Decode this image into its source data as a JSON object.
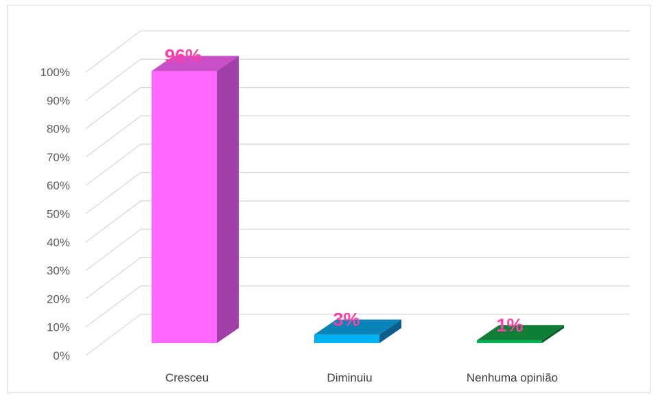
{
  "chart_data": {
    "type": "bar",
    "style": "3d-column",
    "categories": [
      "Cresceu",
      "Diminuiu",
      "Nenhuma opinião"
    ],
    "values": [
      96,
      3,
      1
    ],
    "data_labels": [
      "96%",
      "3%",
      "1%"
    ],
    "colors": {
      "Cresceu": {
        "front": "#ff66ff",
        "side": "#a040a8",
        "top": "#c94fc9"
      },
      "Diminuiu": {
        "front": "#00b0f0",
        "side": "#0d5e8a",
        "top": "#0a84b8"
      },
      "Nenhuma opinião": {
        "front": "#00b050",
        "side": "#0b5e2a",
        "top": "#0f7f38"
      }
    },
    "data_label_color": "#ff3fa6",
    "yticks": [
      "0%",
      "10%",
      "20%",
      "30%",
      "40%",
      "50%",
      "60%",
      "70%",
      "80%",
      "90%",
      "100%"
    ],
    "ylim": [
      0,
      100
    ],
    "grid": true,
    "legend": "none",
    "title": "",
    "xlabel": "",
    "ylabel": ""
  }
}
